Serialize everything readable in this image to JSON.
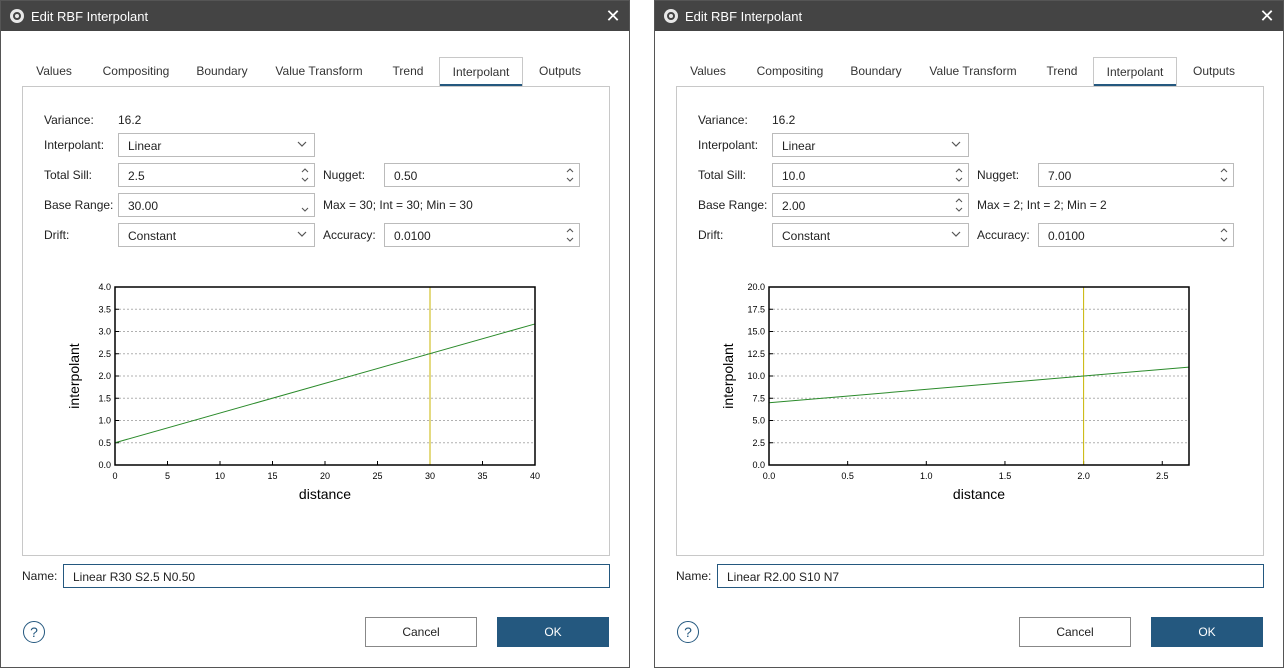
{
  "dialogs": [
    {
      "title": "Edit RBF Interpolant",
      "tabs": [
        "Values",
        "Compositing",
        "Boundary",
        "Value Transform",
        "Trend",
        "Interpolant",
        "Outputs"
      ],
      "active_tab": "Interpolant",
      "fields": {
        "variance_label": "Variance:",
        "variance_value": "16.2",
        "interpolant_label": "Interpolant:",
        "interpolant_value": "Linear",
        "total_sill_label": "Total Sill:",
        "total_sill_value": "2.5",
        "nugget_label": "Nugget:",
        "nugget_value": "0.50",
        "base_range_label": "Base Range:",
        "base_range_value": "30.00",
        "range_summary": "Max = 30; Int = 30; Min = 30",
        "drift_label": "Drift:",
        "drift_value": "Constant",
        "accuracy_label": "Accuracy:",
        "accuracy_value": "0.0100"
      },
      "name_label": "Name:",
      "name_value": "Linear R30 S2.5 N0.50",
      "cancel_label": "Cancel",
      "ok_label": "OK",
      "help_label": "?"
    },
    {
      "title": "Edit RBF Interpolant",
      "tabs": [
        "Values",
        "Compositing",
        "Boundary",
        "Value Transform",
        "Trend",
        "Interpolant",
        "Outputs"
      ],
      "active_tab": "Interpolant",
      "fields": {
        "variance_label": "Variance:",
        "variance_value": "16.2",
        "interpolant_label": "Interpolant:",
        "interpolant_value": "Linear",
        "total_sill_label": "Total Sill:",
        "total_sill_value": "10.0",
        "nugget_label": "Nugget:",
        "nugget_value": "7.00",
        "base_range_label": "Base Range:",
        "base_range_value": "2.00",
        "range_summary": "Max = 2; Int = 2; Min = 2",
        "drift_label": "Drift:",
        "drift_value": "Constant",
        "accuracy_label": "Accuracy:",
        "accuracy_value": "0.0100"
      },
      "name_label": "Name:",
      "name_value": "Linear R2.00 S10 N7",
      "cancel_label": "Cancel",
      "ok_label": "OK",
      "help_label": "?"
    }
  ],
  "colors": {
    "accent": "#24587f",
    "curve": "#2a8a2a",
    "range_marker": "#c8b400",
    "titlebar": "#444444"
  },
  "icons": [
    "app-icon",
    "close-icon",
    "chevron-down-icon",
    "spin-arrows-icon",
    "help-icon"
  ],
  "chart_data": [
    {
      "type": "line",
      "xlabel": "distance",
      "ylabel": "interpolant",
      "xlim": [
        0,
        40
      ],
      "ylim": [
        0,
        4.0
      ],
      "xticks": [
        0,
        5,
        10,
        15,
        20,
        25,
        30,
        35,
        40
      ],
      "yticks": [
        0.0,
        0.5,
        1.0,
        1.5,
        2.0,
        2.5,
        3.0,
        3.5,
        4.0
      ],
      "x_tick_labels": [
        "0",
        "5",
        "10",
        "15",
        "20",
        "25",
        "30",
        "35",
        "40"
      ],
      "y_tick_labels": [
        "0.0",
        "0.5",
        "1.0",
        "1.5",
        "2.0",
        "2.5",
        "3.0",
        "3.5",
        "4.0"
      ],
      "series": [
        {
          "x": [
            0,
            40
          ],
          "y": [
            0.5,
            3.17
          ]
        }
      ],
      "range_marker_x": 30,
      "grid": "horizontal dotted"
    },
    {
      "type": "line",
      "xlabel": "distance",
      "ylabel": "interpolant",
      "xlim": [
        0,
        2.67
      ],
      "ylim": [
        0,
        20.0
      ],
      "xticks": [
        0.0,
        0.5,
        1.0,
        1.5,
        2.0,
        2.5
      ],
      "yticks": [
        0.0,
        2.5,
        5.0,
        7.5,
        10.0,
        12.5,
        15.0,
        17.5,
        20.0
      ],
      "x_tick_labels": [
        "0.0",
        "0.5",
        "1.0",
        "1.5",
        "2.0",
        "2.5"
      ],
      "y_tick_labels": [
        "0.0",
        "2.5",
        "5.0",
        "7.5",
        "10.0",
        "12.5",
        "15.0",
        "17.5",
        "20.0"
      ],
      "series": [
        {
          "x": [
            0,
            2.67
          ],
          "y": [
            7.0,
            11.0
          ]
        }
      ],
      "range_marker_x": 2.0,
      "grid": "horizontal dotted"
    }
  ]
}
